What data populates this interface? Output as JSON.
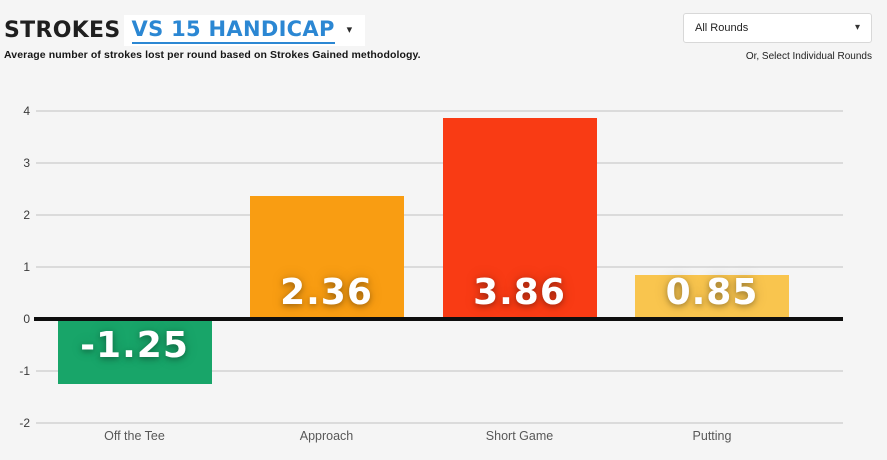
{
  "header": {
    "title_static": "STROKES",
    "title_dropdown": "VS 15 HANDICAP",
    "title_caret_icon": "▾",
    "subtitle": "Average number of strokes lost per round based on Strokes Gained methodology."
  },
  "rounds_filter": {
    "selected": "All Rounds",
    "caret_icon": "▾",
    "alt_link": "Or, Select Individual Rounds"
  },
  "colors": {
    "accent_blue": "#2b87d3",
    "background": "#f5f5f5",
    "zero_line": "#0e0e0e",
    "gridline": "#dbdbdb"
  },
  "chart_data": {
    "type": "bar",
    "title": "STROKES VS 15 HANDICAP",
    "subtitle": "Average number of strokes lost per round based on Strokes Gained methodology.",
    "categories": [
      "Off the Tee",
      "Approach",
      "Short Game",
      "Putting"
    ],
    "values": [
      -1.25,
      2.36,
      3.86,
      0.85
    ],
    "value_labels": [
      "-1.25",
      "2.36",
      "3.86",
      "0.85"
    ],
    "bar_colors": [
      "#18a569",
      "#f99d12",
      "#f93b14",
      "#f9c54e"
    ],
    "y_ticks": [
      4,
      3,
      2,
      1,
      0,
      -1,
      -2
    ],
    "ylim": [
      -2.3,
      4.2
    ],
    "xlabel": "",
    "ylabel": "",
    "grid": true,
    "legend": "none"
  }
}
